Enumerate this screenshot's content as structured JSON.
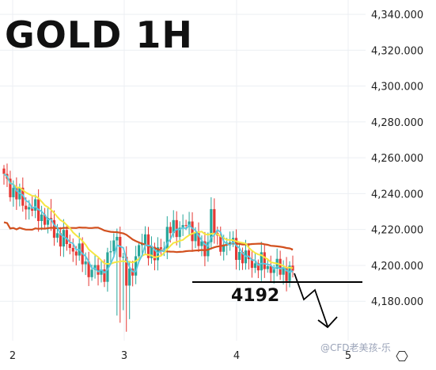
{
  "chart_data": {
    "type": "candlestick",
    "title": "GOLD 1H",
    "x_ticks": [
      "2",
      "3",
      "4",
      "5"
    ],
    "y_ticks": [
      "4,340.000",
      "4,320.000",
      "4,300.000",
      "4,280.000",
      "4,260.000",
      "4,240.000",
      "4,220.000",
      "4,200.000",
      "4,180.000"
    ],
    "ylim": [
      4158,
      4348
    ],
    "grid": true,
    "colors": {
      "up": "#26a69a",
      "down": "#e53935",
      "ma_fast": "#5bc8e0",
      "ma_mid": "#f5e642",
      "ma_slow": "#d2501e",
      "annotation": "#000000"
    },
    "annotation_level": {
      "label": "4192",
      "value": 4192
    },
    "projection": "downward zigzag arrow below 4192"
  },
  "watermark": "@CFD老美孩-乐",
  "settings_icon": "⎔"
}
